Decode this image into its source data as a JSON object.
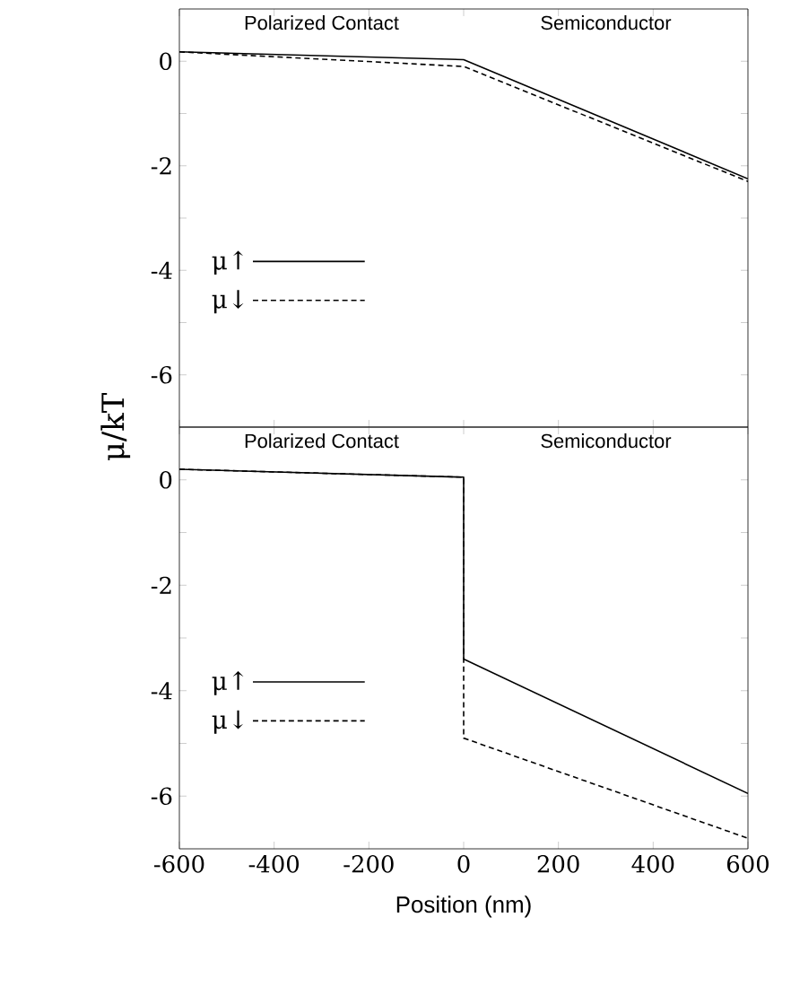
{
  "chart_data": [
    {
      "type": "line",
      "ylabel": "μ/kT",
      "annotations": [
        "Polarized Contact",
        "Semiconductor"
      ],
      "legend": "left",
      "tick_labels": "y",
      "xlim": [
        -600,
        600
      ],
      "xticks": [
        -600,
        -400,
        -200,
        0,
        200,
        400,
        600
      ],
      "ylim": [
        -7,
        1
      ],
      "yticks": [
        0,
        {
          "value": -1,
          "label": null
        },
        -2,
        {
          "value": -3,
          "label": null
        },
        -4,
        {
          "value": -5,
          "label": null
        },
        -6
      ],
      "series": [
        {
          "name": "μ↑",
          "color": "#000000",
          "line_style": "solid",
          "x": [
            -600,
            0,
            600
          ],
          "values": [
            0.18,
            0.03,
            -2.25
          ]
        },
        {
          "name": "μ↓",
          "color": "#000000",
          "line_style": "dashed",
          "x": [
            -600,
            0,
            600
          ],
          "values": [
            0.18,
            -0.1,
            -2.3
          ]
        }
      ]
    },
    {
      "type": "line",
      "xlabel": "Position (nm)",
      "annotations": [
        "Polarized Contact",
        "Semiconductor"
      ],
      "legend": "left",
      "xlim": [
        -600,
        600
      ],
      "xticks": [
        -600,
        -400,
        -200,
        0,
        200,
        400,
        600
      ],
      "ylim": [
        -7,
        1
      ],
      "yticks": [
        0,
        {
          "value": -1,
          "label": null
        },
        -2,
        {
          "value": -3,
          "label": null
        },
        -4,
        {
          "value": -5,
          "label": null
        },
        -6
      ],
      "series": [
        {
          "name": "μ↑",
          "color": "#000000",
          "line_style": "solid",
          "x": [
            -600,
            0,
            0,
            600
          ],
          "values": [
            0.2,
            0.05,
            -3.4,
            -5.95
          ]
        },
        {
          "name": "μ↓",
          "color": "#000000",
          "line_style": "dashed",
          "x": [
            -600,
            0,
            0,
            600
          ],
          "values": [
            0.2,
            0.05,
            -4.9,
            -6.8
          ]
        }
      ]
    }
  ]
}
